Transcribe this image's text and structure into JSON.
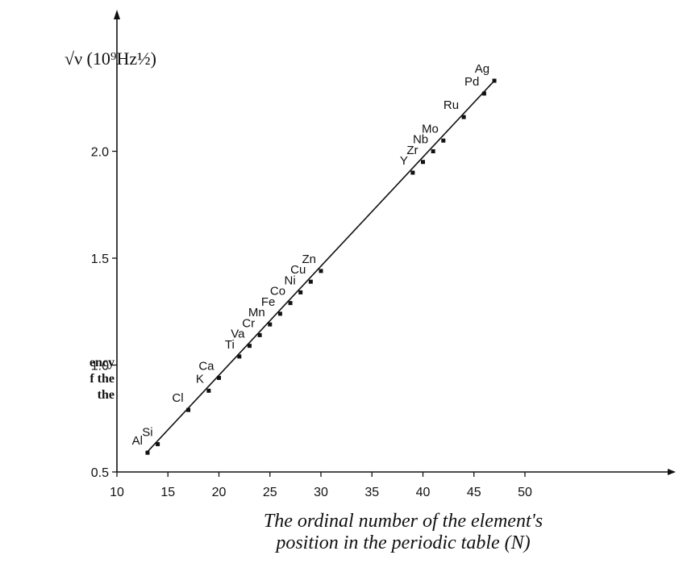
{
  "side_caption": [
    "ency",
    "f  the",
    "the"
  ],
  "chart_data": {
    "type": "scatter",
    "title": "",
    "ylabel": "√ν (10⁹Hz½)",
    "xlabel_lines": [
      "The ordinal number of the element's",
      "position in the periodic table (N)"
    ],
    "xlim": [
      10,
      52
    ],
    "ylim": [
      0.5,
      2.45
    ],
    "x_ticks": [
      "10",
      "15",
      "20",
      "25",
      "30",
      "35",
      "40",
      "45",
      "50"
    ],
    "y_ticks": [
      "0.5",
      "1.0",
      "1.5",
      "2.0"
    ],
    "grid": false,
    "fit_line": [
      [
        12.9,
        0.59
      ],
      [
        47,
        2.33
      ]
    ],
    "series": [
      {
        "points": [
          {
            "label": "Al",
            "x": 13,
            "y": 0.59
          },
          {
            "label": "Si",
            "x": 14,
            "y": 0.63
          },
          {
            "label": "Cl",
            "x": 17,
            "y": 0.79
          },
          {
            "label": "K",
            "x": 19,
            "y": 0.88
          },
          {
            "label": "Ca",
            "x": 20,
            "y": 0.94
          },
          {
            "label": "Ti",
            "x": 22,
            "y": 1.04
          },
          {
            "label": "Va",
            "x": 23,
            "y": 1.09
          },
          {
            "label": "Cr",
            "x": 24,
            "y": 1.14
          },
          {
            "label": "Mn",
            "x": 25,
            "y": 1.19
          },
          {
            "label": "Fe",
            "x": 26,
            "y": 1.24
          },
          {
            "label": "Co",
            "x": 27,
            "y": 1.29
          },
          {
            "label": "Ni",
            "x": 28,
            "y": 1.34
          },
          {
            "label": "Cu",
            "x": 29,
            "y": 1.39
          },
          {
            "label": "Zn",
            "x": 30,
            "y": 1.44
          },
          {
            "label": "Y",
            "x": 39,
            "y": 1.9
          },
          {
            "label": "Zr",
            "x": 40,
            "y": 1.95
          },
          {
            "label": "Nb",
            "x": 41,
            "y": 2.0
          },
          {
            "label": "Mo",
            "x": 42,
            "y": 2.05
          },
          {
            "label": "Ru",
            "x": 44,
            "y": 2.16
          },
          {
            "label": "Pd",
            "x": 46,
            "y": 2.27
          },
          {
            "label": "Ag",
            "x": 47,
            "y": 2.33
          }
        ]
      }
    ]
  }
}
